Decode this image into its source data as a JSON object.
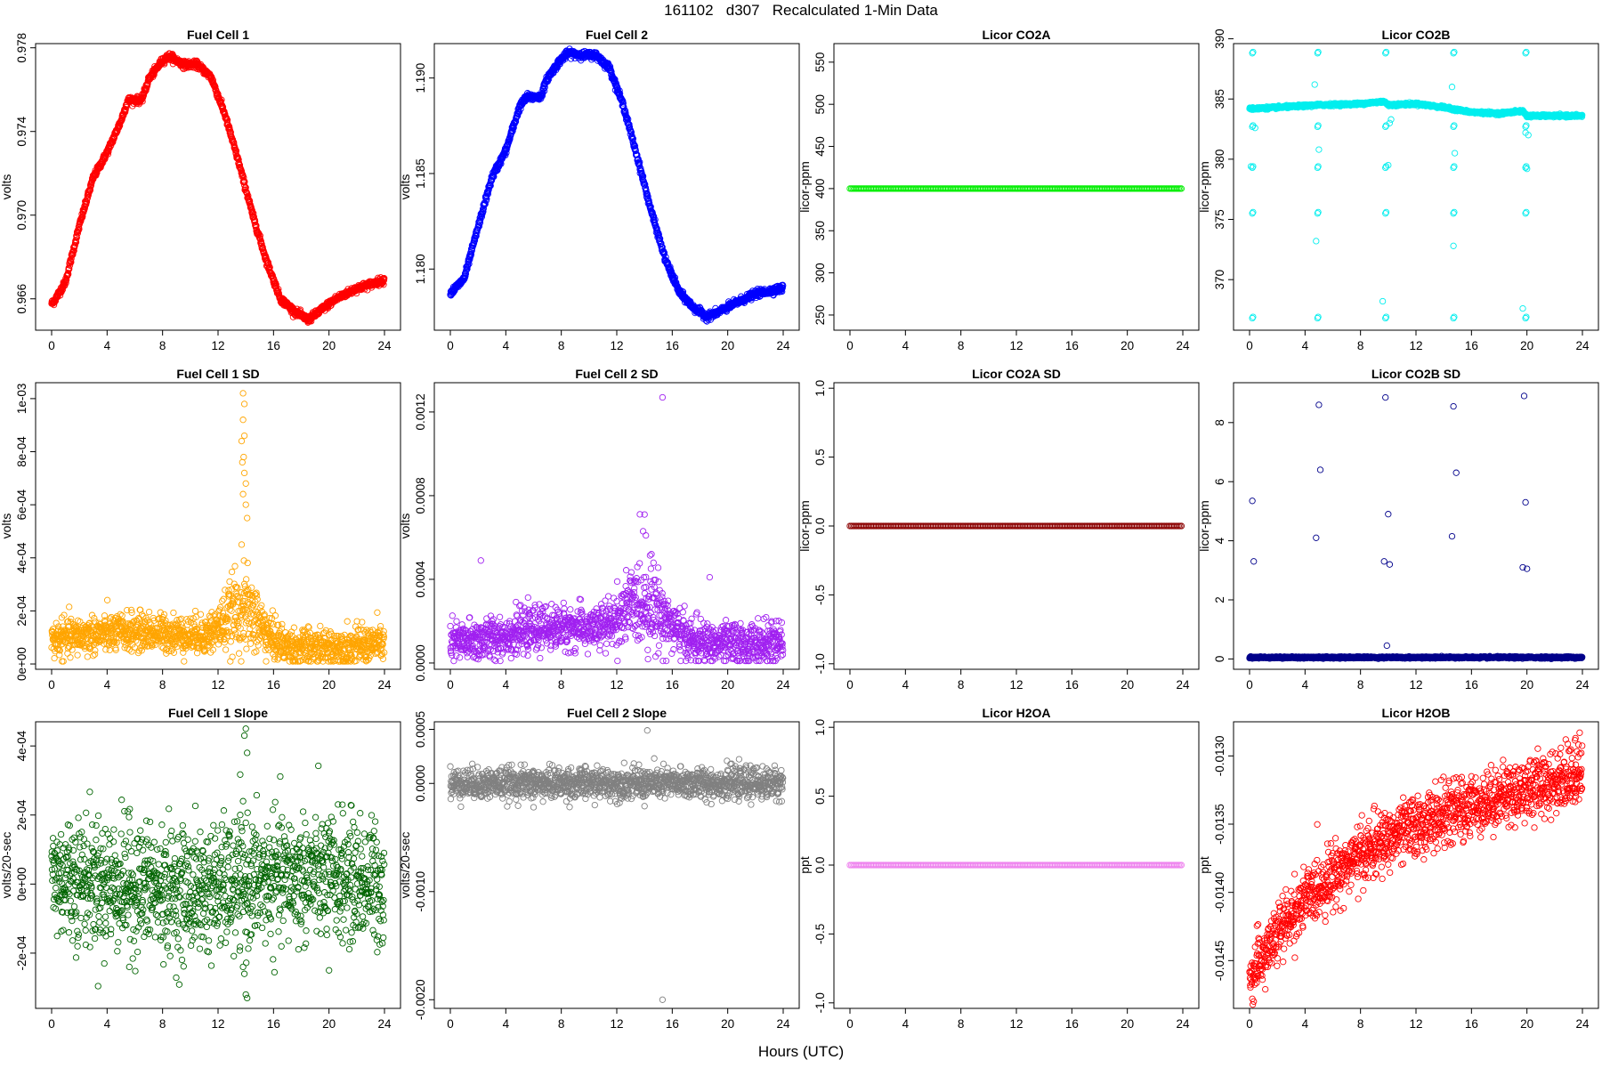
{
  "figure": {
    "title": "161102   d307   Recalculated 1-Min Data",
    "xlabel": "Hours (UTC)"
  },
  "chart_data": [
    {
      "type": "scatter",
      "title": "Fuel Cell 1",
      "ylabel": "volts",
      "color": "#ff0000",
      "xlim": [
        0,
        24
      ],
      "xticks": [
        0,
        4,
        8,
        12,
        16,
        20,
        24
      ],
      "ylim": [
        0.9645,
        0.9782
      ],
      "yticks": [
        0.966,
        0.97,
        0.974,
        0.978
      ],
      "ytick_labels": [
        "0.966",
        "0.970",
        "0.974",
        "0.978"
      ],
      "profile": [
        [
          0.1,
          0.9658
        ],
        [
          1,
          0.9668
        ],
        [
          2,
          0.9695
        ],
        [
          3,
          0.9718
        ],
        [
          4,
          0.973
        ],
        [
          5,
          0.9745
        ],
        [
          5.5,
          0.9755
        ],
        [
          6.5,
          0.9755
        ],
        [
          7,
          0.9765
        ],
        [
          8,
          0.9774
        ],
        [
          8.5,
          0.9776
        ],
        [
          9.5,
          0.9772
        ],
        [
          10.5,
          0.9772
        ],
        [
          11.5,
          0.9766
        ],
        [
          12.5,
          0.9748
        ],
        [
          13.5,
          0.9725
        ],
        [
          14.5,
          0.97
        ],
        [
          15.5,
          0.9678
        ],
        [
          16.5,
          0.966
        ],
        [
          17.5,
          0.9654
        ],
        [
          18.5,
          0.965
        ],
        [
          19.5,
          0.9655
        ],
        [
          20.5,
          0.966
        ],
        [
          22,
          0.9665
        ],
        [
          24,
          0.9669
        ]
      ]
    },
    {
      "type": "scatter",
      "title": "Fuel Cell 2",
      "ylabel": "volts",
      "color": "#0000ff",
      "xlim": [
        0,
        24
      ],
      "xticks": [
        0,
        4,
        8,
        12,
        16,
        20,
        24
      ],
      "ylim": [
        1.1768,
        1.1918
      ],
      "yticks": [
        1.18,
        1.185,
        1.19
      ],
      "ytick_labels": [
        "1.180",
        "1.185",
        "1.190"
      ],
      "profile": [
        [
          0.1,
          1.1788
        ],
        [
          1,
          1.1795
        ],
        [
          2,
          1.1822
        ],
        [
          3,
          1.1848
        ],
        [
          4,
          1.1862
        ],
        [
          5,
          1.1885
        ],
        [
          5.5,
          1.189
        ],
        [
          6.5,
          1.189
        ],
        [
          7,
          1.19
        ],
        [
          8,
          1.191
        ],
        [
          8.5,
          1.1913
        ],
        [
          9.5,
          1.1912
        ],
        [
          10.5,
          1.1912
        ],
        [
          11.5,
          1.1905
        ],
        [
          12.5,
          1.1885
        ],
        [
          13.5,
          1.1858
        ],
        [
          14.5,
          1.183
        ],
        [
          15.5,
          1.1805
        ],
        [
          16.5,
          1.1788
        ],
        [
          17.5,
          1.178
        ],
        [
          18.5,
          1.1775
        ],
        [
          19.5,
          1.1778
        ],
        [
          20.5,
          1.1782
        ],
        [
          22,
          1.1787
        ],
        [
          24,
          1.179
        ]
      ]
    },
    {
      "type": "scatter",
      "title": "Licor CO2A",
      "ylabel": "licor-ppm",
      "color": "#00ee00",
      "xlim": [
        0,
        24
      ],
      "xticks": [
        0,
        4,
        8,
        12,
        16,
        20,
        24
      ],
      "ylim": [
        232,
        572
      ],
      "yticks": [
        250,
        300,
        350,
        400,
        450,
        500,
        550
      ],
      "ytick_labels": [
        "250",
        "300",
        "350",
        "400",
        "450",
        "500",
        "550"
      ],
      "constant": 400
    },
    {
      "type": "scatter",
      "title": "Licor CO2B",
      "ylabel": "licor-ppm",
      "color": "#00eeee",
      "xlim": [
        0,
        24
      ],
      "xticks": [
        0,
        4,
        8,
        12,
        16,
        20,
        24
      ],
      "ylim": [
        365.8,
        389.6
      ],
      "yticks": [
        370,
        375,
        380,
        385,
        390
      ],
      "ytick_labels": [
        "370",
        "375",
        "380",
        "385",
        "390"
      ],
      "profile": [
        [
          0.3,
          384.2
        ],
        [
          2,
          384.3
        ],
        [
          5,
          384.5
        ],
        [
          8,
          384.6
        ],
        [
          9.7,
          384.8
        ],
        [
          10,
          384.5
        ],
        [
          12,
          384.6
        ],
        [
          14,
          384.3
        ],
        [
          16,
          383.9
        ],
        [
          18,
          383.8
        ],
        [
          19.7,
          384.0
        ],
        [
          20,
          383.6
        ],
        [
          24,
          383.6
        ]
      ],
      "outlier_times": [
        0.2,
        4.9,
        9.8,
        14.7,
        19.9
      ],
      "outlier_values": [
        388.8,
        375.5,
        366.8,
        379.3,
        382.7
      ]
    },
    {
      "type": "scatter",
      "title": "Fuel Cell 1 SD",
      "ylabel": "volts",
      "color": "#ffa500",
      "xlim": [
        0,
        24
      ],
      "xticks": [
        0,
        4,
        8,
        12,
        16,
        20,
        24
      ],
      "ylim": [
        -2e-05,
        0.00106
      ],
      "yticks": [
        0,
        0.0002,
        0.0004,
        0.0006,
        0.0008,
        0.001
      ],
      "ytick_labels": [
        "0e+00",
        "2e-04",
        "4e-04",
        "6e-04",
        "8e-04",
        "1e-03"
      ]
    },
    {
      "type": "scatter",
      "title": "Fuel Cell 2 SD",
      "ylabel": "volts",
      "color": "#a020f0",
      "xlim": [
        0,
        24
      ],
      "xticks": [
        0,
        4,
        8,
        12,
        16,
        20,
        24
      ],
      "ylim": [
        -3e-05,
        0.00134
      ],
      "yticks": [
        0,
        0.0004,
        0.0008,
        0.0012
      ],
      "ytick_labels": [
        "0.0000",
        "0.0004",
        "0.0008",
        "0.0012"
      ]
    },
    {
      "type": "scatter",
      "title": "Licor CO2A SD",
      "ylabel": "licor-ppm",
      "color": "#8b0000",
      "xlim": [
        0,
        24
      ],
      "xticks": [
        0,
        4,
        8,
        12,
        16,
        20,
        24
      ],
      "ylim": [
        -1.04,
        1.04
      ],
      "yticks": [
        -1.0,
        -0.5,
        0.0,
        0.5,
        1.0
      ],
      "ytick_labels": [
        "-1.0",
        "-0.5",
        "0.0",
        "0.5",
        "1.0"
      ],
      "constant": 0
    },
    {
      "type": "scatter",
      "title": "Licor CO2B SD",
      "ylabel": "licor-ppm",
      "color": "#00008b",
      "xlim": [
        0,
        24
      ],
      "xticks": [
        0,
        4,
        8,
        12,
        16,
        20,
        24
      ],
      "ylim": [
        -0.35,
        9.35
      ],
      "yticks": [
        0,
        2,
        4,
        6,
        8
      ],
      "ytick_labels": [
        "0",
        "2",
        "4",
        "6",
        "8"
      ],
      "outliers": [
        [
          0.2,
          5.35
        ],
        [
          0.3,
          3.3
        ],
        [
          4.8,
          4.1
        ],
        [
          5.0,
          8.6
        ],
        [
          5.1,
          6.4
        ],
        [
          9.8,
          8.85
        ],
        [
          9.7,
          3.3
        ],
        [
          10.1,
          3.2
        ],
        [
          10.0,
          4.9
        ],
        [
          9.9,
          0.45
        ],
        [
          14.7,
          8.55
        ],
        [
          14.9,
          6.3
        ],
        [
          14.6,
          4.15
        ],
        [
          19.8,
          8.9
        ],
        [
          19.9,
          5.3
        ],
        [
          19.7,
          3.1
        ],
        [
          20.0,
          3.05
        ]
      ]
    },
    {
      "type": "scatter",
      "title": "Fuel Cell 1 Slope",
      "ylabel": "volts/20-sec",
      "color": "#006400",
      "xlim": [
        0,
        24
      ],
      "xticks": [
        0,
        4,
        8,
        12,
        16,
        20,
        24
      ],
      "ylim": [
        -0.00036,
        0.00047
      ],
      "yticks": [
        -0.0002,
        0,
        0.0002,
        0.0004
      ],
      "ytick_labels": [
        "-2e-04",
        "0e+00",
        "2e-04",
        "4e-04"
      ]
    },
    {
      "type": "scatter",
      "title": "Fuel Cell 2 Slope",
      "ylabel": "volts/20-sec",
      "color": "#808080",
      "xlim": [
        0,
        24
      ],
      "xticks": [
        0,
        4,
        8,
        12,
        16,
        20,
        24
      ],
      "ylim": [
        -0.00208,
        0.00057
      ],
      "yticks": [
        -0.002,
        -0.001,
        0,
        0.0005
      ],
      "ytick_labels": [
        "-0.0020",
        "-0.0010",
        "0.0000",
        "0.0005"
      ]
    },
    {
      "type": "scatter",
      "title": "Licor H2OA",
      "ylabel": "ppt",
      "color": "#ee82ee",
      "xlim": [
        0,
        24
      ],
      "xticks": [
        0,
        4,
        8,
        12,
        16,
        20,
        24
      ],
      "ylim": [
        -1.04,
        1.04
      ],
      "yticks": [
        -1.0,
        -0.5,
        0.0,
        0.5,
        1.0
      ],
      "ytick_labels": [
        "-1.0",
        "-0.5",
        "0.0",
        "0.5",
        "1.0"
      ],
      "constant": 0
    },
    {
      "type": "scatter",
      "title": "Licor H2OB",
      "ylabel": "ppt",
      "color": "#ff0000",
      "xlim": [
        0,
        24
      ],
      "xticks": [
        0,
        4,
        8,
        12,
        16,
        20,
        24
      ],
      "ylim": [
        -0.01485,
        -0.01275
      ],
      "yticks": [
        -0.0145,
        -0.014,
        -0.0135,
        -0.013
      ],
      "ytick_labels": [
        "-0.0145",
        "-0.0140",
        "-0.0135",
        "-0.0130"
      ]
    }
  ]
}
